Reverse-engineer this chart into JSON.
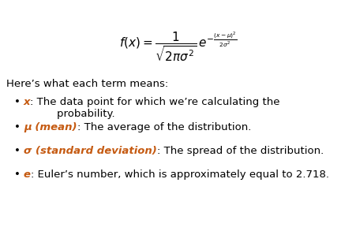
{
  "background_color": "#ffffff",
  "formula": "$f(x) = \\dfrac{1}{\\sqrt{2\\pi\\sigma^2}}\\,e^{-\\frac{(x-\\mu)^2}{2\\sigma^2}}$",
  "header": "Here’s what each term means:",
  "bullets": [
    {
      "bold_italic_part": "x",
      "rest": ": The data point for which we’re calculating the\n        probability."
    },
    {
      "bold_italic_part": "μ (mean)",
      "rest": ": The average of the distribution."
    },
    {
      "bold_italic_part": "σ (standard deviation)",
      "rest": ": The spread of the distribution."
    },
    {
      "bold_italic_part": "e",
      "rest": ": Euler’s number, which is approximately equal to 2.718."
    }
  ],
  "formula_fontsize": 11,
  "header_fontsize": 9.5,
  "bullet_fontsize": 9.5,
  "bold_color": "#c55a11",
  "text_color": "#000000",
  "fig_width": 4.52,
  "fig_height": 2.93,
  "dpi": 100
}
